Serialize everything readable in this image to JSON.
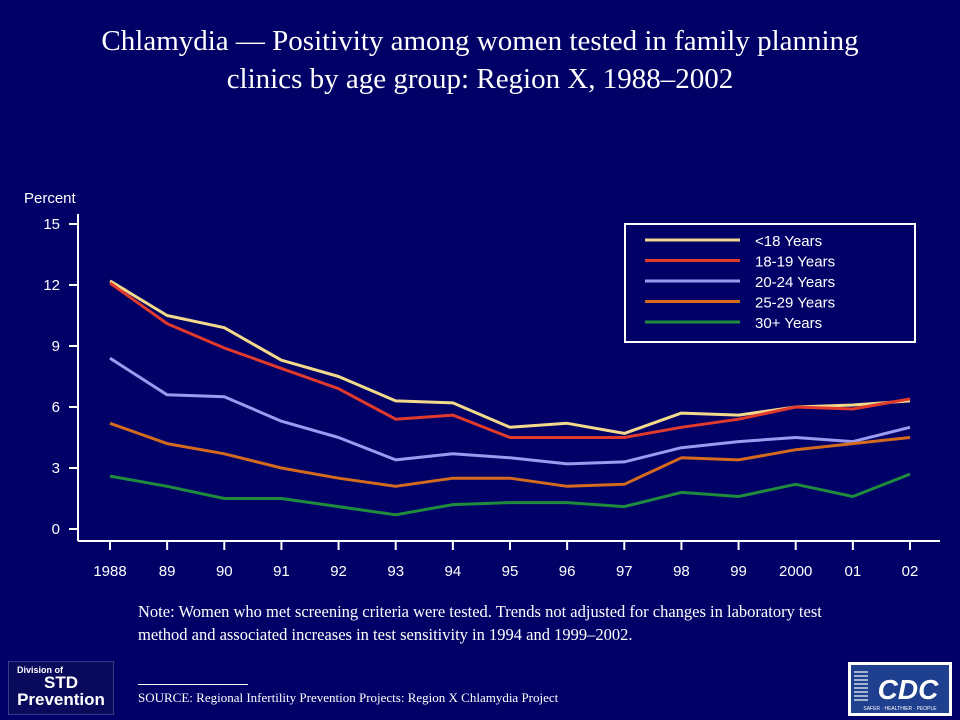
{
  "title": {
    "line1": "Chlamydia — Positivity among women tested in family planning",
    "line2": "clinics by age group: Region X, 1988–2002"
  },
  "note": "Note: Women who met screening criteria were tested. Trends not adjusted for changes in laboratory test method and associated increases in test sensitivity in 1994 and 1999–2002.",
  "source": "SOURCE: Regional Infertility Prevention Projects: Region X Chlamydia Project",
  "logos": {
    "std": {
      "line1": "Division of",
      "line2": "STD",
      "line3": "Prevention"
    },
    "cdc": {
      "text": "CDC",
      "tagline": "SAFER · HEALTHIER · PEOPLE"
    }
  },
  "chart_data": {
    "type": "line",
    "title": "Chlamydia — Positivity among women tested in family planning clinics by age group: Region X, 1988–2002",
    "ylabel": "Percent",
    "xlabel": "",
    "ylim": [
      0,
      15
    ],
    "yticks": [
      0,
      3,
      6,
      9,
      12,
      15
    ],
    "categories": [
      "1988",
      "89",
      "90",
      "91",
      "92",
      "93",
      "94",
      "95",
      "96",
      "97",
      "98",
      "99",
      "2000",
      "01",
      "02"
    ],
    "grid": false,
    "legend_position": "top-right",
    "series": [
      {
        "name": "<18 Years",
        "color": "#f2d98c",
        "values": [
          12.2,
          10.5,
          9.9,
          8.3,
          7.5,
          6.3,
          6.2,
          5.0,
          5.2,
          4.7,
          5.7,
          5.6,
          6.0,
          6.1,
          6.3
        ]
      },
      {
        "name": "18-19 Years",
        "color": "#e03a2c",
        "values": [
          12.1,
          10.1,
          8.9,
          7.9,
          6.9,
          5.4,
          5.6,
          4.5,
          4.5,
          4.5,
          5.0,
          5.4,
          6.0,
          5.9,
          6.4
        ]
      },
      {
        "name": "20-24 Years",
        "color": "#9a9af0",
        "values": [
          8.4,
          6.6,
          6.5,
          5.3,
          4.5,
          3.4,
          3.7,
          3.5,
          3.2,
          3.3,
          4.0,
          4.3,
          4.5,
          4.3,
          5.0
        ]
      },
      {
        "name": "25-29 Years",
        "color": "#d46a1e",
        "values": [
          5.2,
          4.2,
          3.7,
          3.0,
          2.5,
          2.1,
          2.5,
          2.5,
          2.1,
          2.2,
          3.5,
          3.4,
          3.9,
          4.2,
          4.5
        ]
      },
      {
        "name": "30+ Years",
        "color": "#1e8c3c",
        "values": [
          2.6,
          2.1,
          1.5,
          1.5,
          1.1,
          0.7,
          1.2,
          1.3,
          1.3,
          1.1,
          1.8,
          1.6,
          2.2,
          1.6,
          2.7
        ]
      }
    ]
  }
}
